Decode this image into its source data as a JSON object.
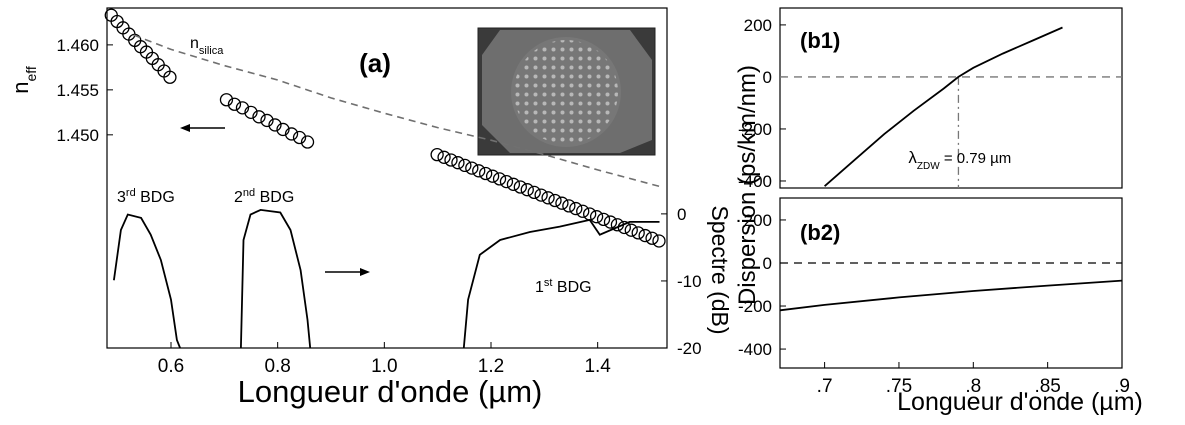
{
  "chart_data": [
    {
      "type": "scatter",
      "title": "(a)",
      "xlabel": "Longueur d'onde  (µm)",
      "ylabel": {
        "text": "n",
        "sub": "eff"
      },
      "y2label": "Spectre (dB)",
      "xlim": [
        0.48,
        1.53
      ],
      "xticks": [
        0.6,
        0.8,
        {
          "value": 1,
          "label": "1.0"
        },
        1.2,
        1.4
      ],
      "ylim": [
        1.4263,
        1.4641
      ],
      "yticks": [
        {
          "value": 1.45,
          "label": "1.450"
        },
        1.455,
        {
          "value": 1.46,
          "label": "1.460"
        }
      ],
      "y2lim": [
        -20,
        30.7
      ],
      "y2ticks": [
        0,
        -10,
        -20
      ],
      "series": [
        {
          "type": "scatter",
          "color": "#000000",
          "x": [
            0.488,
            0.499,
            0.51,
            0.521,
            0.532,
            0.543,
            0.554,
            0.565,
            0.576,
            0.587,
            0.598,
            0.704,
            0.719,
            0.734,
            0.75,
            0.765,
            0.78,
            0.795,
            0.81,
            0.826,
            0.841,
            0.856,
            1.099,
            1.112,
            1.125,
            1.138,
            1.151,
            1.164,
            1.177,
            1.19,
            1.203,
            1.216,
            1.229,
            1.242,
            1.255,
            1.268,
            1.281,
            1.294,
            1.307,
            1.32,
            1.333,
            1.346,
            1.359,
            1.372,
            1.385,
            1.398,
            1.411,
            1.424,
            1.437,
            1.45,
            1.463,
            1.476,
            1.489,
            1.502,
            1.515
          ],
          "values": [
            1.4633,
            1.4626,
            1.4619,
            1.4612,
            1.4605,
            1.4598,
            1.4592,
            1.4585,
            1.4578,
            1.4571,
            1.4564,
            1.4539,
            1.4534,
            1.453,
            1.4525,
            1.452,
            1.4516,
            1.4511,
            1.4506,
            1.4501,
            1.4497,
            1.4492,
            1.4478,
            1.4475,
            1.4472,
            1.4469,
            1.4466,
            1.4463,
            1.446,
            1.4457,
            1.4454,
            1.4451,
            1.4448,
            1.4445,
            1.4442,
            1.4439,
            1.4436,
            1.4433,
            1.443,
            1.4427,
            1.4424,
            1.4421,
            1.4418,
            1.4415,
            1.4412,
            1.4409,
            1.4406,
            1.4403,
            1.44,
            1.4397,
            1.4394,
            1.4391,
            1.4388,
            1.4385,
            1.4382
          ]
        },
        {
          "type": "line",
          "color": "#707070",
          "dash": true,
          "x": [
            0.53,
            0.6,
            0.7,
            0.8,
            0.9,
            1.0,
            1.1,
            1.2,
            1.3,
            1.4,
            1.52
          ],
          "values": [
            1.4611,
            1.4595,
            1.4577,
            1.4561,
            1.4541,
            1.4524,
            1.4508,
            1.4494,
            1.4478,
            1.4461,
            1.4442
          ]
        },
        {
          "type": "line",
          "color": "#000000",
          "axis": "y2",
          "x": [
            0.493,
            0.506,
            0.519,
            0.544,
            0.562,
            0.581,
            0.6,
            0.611,
            0.617
          ],
          "values": [
            -9.9,
            -2.4,
            -0.1,
            -0.6,
            -3.1,
            -6.9,
            -12.8,
            -18.8,
            -20
          ]
        },
        {
          "type": "line",
          "color": "#000000",
          "axis": "y2",
          "x": [
            0.731,
            0.736,
            0.749,
            0.768,
            0.805,
            0.824,
            0.843,
            0.856,
            0.861
          ],
          "values": [
            -20,
            -3.9,
            -0.1,
            0.6,
            0.2,
            -2.4,
            -8.4,
            -15.8,
            -20
          ]
        },
        {
          "type": "line",
          "color": "#000000",
          "axis": "y2",
          "x": [
            1.149,
            1.157,
            1.179,
            1.217,
            1.273,
            1.329,
            1.385,
            1.404,
            1.46,
            1.516
          ],
          "values": [
            -20,
            -12.8,
            -6.1,
            -3.9,
            -2.7,
            -1.9,
            -0.9,
            -3.1,
            -1.2,
            -1.2
          ]
        }
      ],
      "annotations": [
        {
          "text": "n",
          "sub": "silica"
        },
        {
          "text": "3",
          "sup": "rd",
          "after": " BDG"
        },
        {
          "text": "2",
          "sup": "nd",
          "after": " BDG"
        },
        {
          "text": "1",
          "sup": "st",
          "after": " BDG"
        }
      ]
    },
    {
      "type": "line",
      "title": "(b1)",
      "ylabel": "Dispersion (ps/km/nm)",
      "xlim": [
        0.67,
        0.9
      ],
      "ylim": [
        -427,
        265
      ],
      "yticks": [
        200,
        0,
        -200,
        -400
      ],
      "hline": 0,
      "zdw": {
        "symbol": "λ",
        "sub": "ZDW",
        "value": 0.79,
        "label": " = 0.79 µm"
      },
      "series": [
        {
          "type": "line",
          "color": "#000000",
          "x": [
            0.7,
            0.72,
            0.74,
            0.76,
            0.78,
            0.79,
            0.8,
            0.82,
            0.84,
            0.86
          ],
          "values": [
            -420,
            -320,
            -220,
            -130,
            -45,
            0,
            35,
            90,
            140,
            190
          ]
        }
      ]
    },
    {
      "type": "line",
      "title": "(b2)",
      "xlabel": "Longueur d'onde  (µm)",
      "xlim": [
        0.67,
        0.9
      ],
      "xticks": [
        {
          "value": 0.7,
          "label": ".7"
        },
        {
          "value": 0.75,
          "label": ".75"
        },
        {
          "value": 0.8,
          "label": ".8"
        },
        {
          "value": 0.85,
          "label": ".85"
        },
        {
          "value": 0.9,
          "label": ".9"
        }
      ],
      "ylim": [
        -488,
        302
      ],
      "yticks": [
        200,
        0,
        -200,
        -400
      ],
      "hline": 0,
      "series": [
        {
          "type": "line",
          "color": "#000000",
          "x": [
            0.67,
            0.7,
            0.75,
            0.8,
            0.85,
            0.9
          ],
          "values": [
            -220,
            -195,
            -160,
            -130,
            -105,
            -82
          ]
        }
      ]
    }
  ]
}
